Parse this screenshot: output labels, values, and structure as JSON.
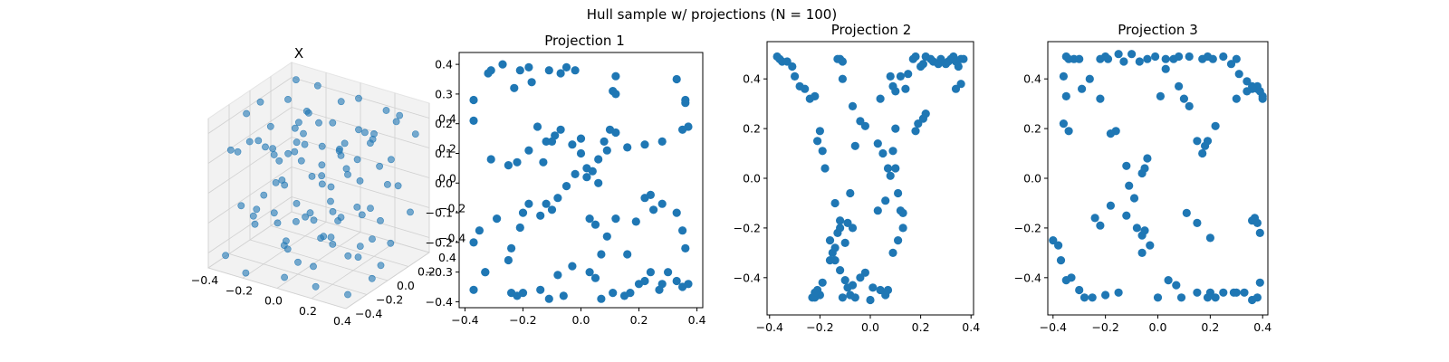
{
  "figure": {
    "suptitle": "Hull sample w/ projections (N = 100)"
  },
  "colors": {
    "point": "#1f77b4",
    "axes": "#000000",
    "pane": "#f2f2f2",
    "grid3d": "#d0d0d0"
  },
  "chart_data": [
    {
      "type": "scatter",
      "projection": "3d",
      "title": "X",
      "xlim": [
        -0.4,
        0.4
      ],
      "ylim": [
        -0.4,
        0.4
      ],
      "zlim": [
        -0.5,
        0.5
      ],
      "xticks": [
        "−0.4",
        "−0.2",
        "0.0",
        "0.2",
        "0.4"
      ],
      "yticks": [
        "−0.4",
        "−0.2",
        "0.0",
        "0.2",
        "0.4"
      ],
      "zticks": [
        "−0.4",
        "−0.2",
        "0.0",
        "0.2",
        "0.4"
      ],
      "grid": true,
      "marker_alpha": 0.6,
      "points_xyz": [
        [
          -0.35,
          0.36,
          0.42
        ],
        [
          -0.3,
          0.2,
          0.38
        ],
        [
          -0.2,
          0.32,
          0.45
        ],
        [
          -0.1,
          0.38,
          0.35
        ],
        [
          0.05,
          0.3,
          0.46
        ],
        [
          0.18,
          0.35,
          0.4
        ],
        [
          0.3,
          0.28,
          0.44
        ],
        [
          0.36,
          0.15,
          0.48
        ],
        [
          0.33,
          -0.05,
          0.42
        ],
        [
          0.25,
          -0.2,
          0.38
        ],
        [
          0.1,
          -0.3,
          0.45
        ],
        [
          -0.05,
          -0.36,
          0.4
        ],
        [
          -0.22,
          -0.3,
          0.36
        ],
        [
          -0.33,
          -0.15,
          0.44
        ],
        [
          -0.37,
          0.05,
          0.41
        ],
        [
          -0.28,
          0.27,
          0.2
        ],
        [
          -0.15,
          0.1,
          0.25
        ],
        [
          0.0,
          0.2,
          0.15
        ],
        [
          0.12,
          0.05,
          0.3
        ],
        [
          0.22,
          0.22,
          0.1
        ],
        [
          0.3,
          -0.1,
          0.18
        ],
        [
          0.15,
          -0.22,
          0.22
        ],
        [
          -0.05,
          -0.15,
          0.28
        ],
        [
          -0.2,
          -0.05,
          0.12
        ],
        [
          -0.32,
          0.1,
          0.05
        ],
        [
          -0.36,
          0.3,
          -0.05
        ],
        [
          -0.2,
          0.36,
          -0.1
        ],
        [
          0.0,
          0.37,
          0.0
        ],
        [
          0.2,
          0.33,
          -0.08
        ],
        [
          0.34,
          0.2,
          0.02
        ],
        [
          0.37,
          -0.02,
          -0.1
        ],
        [
          0.28,
          -0.25,
          0.0
        ],
        [
          0.08,
          -0.35,
          -0.05
        ],
        [
          -0.12,
          -0.33,
          0.05
        ],
        [
          -0.3,
          -0.25,
          -0.12
        ],
        [
          -0.1,
          0.1,
          -0.02
        ],
        [
          0.05,
          -0.05,
          0.05
        ],
        [
          0.15,
          0.12,
          -0.15
        ],
        [
          -0.05,
          0.0,
          -0.2
        ],
        [
          0.1,
          -0.12,
          -0.25
        ],
        [
          -0.25,
          0.2,
          -0.3
        ],
        [
          -0.1,
          0.3,
          -0.35
        ],
        [
          0.1,
          0.25,
          -0.28
        ],
        [
          0.25,
          0.1,
          -0.32
        ],
        [
          0.32,
          -0.15,
          -0.3
        ],
        [
          0.15,
          -0.3,
          -0.35
        ],
        [
          -0.05,
          -0.25,
          -0.3
        ],
        [
          -0.25,
          -0.2,
          -0.25
        ],
        [
          -0.35,
          -0.05,
          -0.3
        ],
        [
          -0.3,
          0.1,
          -0.4
        ],
        [
          -0.36,
          -0.3,
          -0.45
        ],
        [
          -0.2,
          -0.37,
          -0.48
        ],
        [
          0.0,
          -0.33,
          -0.46
        ],
        [
          0.2,
          -0.36,
          -0.44
        ],
        [
          0.35,
          -0.3,
          -0.47
        ],
        [
          0.37,
          -0.1,
          -0.45
        ],
        [
          0.3,
          0.1,
          -0.48
        ],
        [
          0.12,
          0.2,
          -0.46
        ],
        [
          -0.08,
          0.15,
          -0.45
        ],
        [
          -0.22,
          0.05,
          -0.47
        ],
        [
          -0.12,
          -0.1,
          -0.42
        ],
        [
          0.05,
          0.05,
          -0.4
        ],
        [
          0.2,
          -0.05,
          -0.38
        ],
        [
          0.08,
          -0.18,
          -0.12
        ],
        [
          -0.15,
          -0.18,
          -0.15
        ],
        [
          -0.28,
          0.0,
          0.3
        ],
        [
          -0.18,
          0.2,
          0.33
        ],
        [
          0.02,
          0.1,
          0.38
        ],
        [
          0.18,
          -0.1,
          0.34
        ],
        [
          0.05,
          -0.25,
          0.3
        ],
        [
          -0.3,
          -0.35,
          0.3
        ],
        [
          0.35,
          0.35,
          0.3
        ],
        [
          0.35,
          0.3,
          -0.2
        ],
        [
          -0.35,
          0.35,
          0.1
        ],
        [
          0.0,
          0.0,
          0.42
        ],
        [
          -0.15,
          0.28,
          0.08
        ],
        [
          0.25,
          -0.3,
          0.12
        ],
        [
          -0.25,
          -0.1,
          0.22
        ],
        [
          0.12,
          0.32,
          0.2
        ],
        [
          0.3,
          0.0,
          -0.05
        ],
        [
          -0.05,
          0.2,
          -0.12
        ],
        [
          0.2,
          0.2,
          0.32
        ],
        [
          -0.2,
          -0.25,
          0.35
        ],
        [
          0.0,
          -0.2,
          -0.42
        ],
        [
          -0.32,
          0.2,
          -0.2
        ],
        [
          0.32,
          -0.25,
          0.3
        ],
        [
          -0.1,
          0.05,
          0.44
        ],
        [
          0.1,
          0.1,
          0.1
        ],
        [
          -0.02,
          -0.32,
          0.18
        ],
        [
          0.26,
          0.26,
          -0.42
        ],
        [
          -0.26,
          0.3,
          -0.44
        ],
        [
          0.18,
          -0.18,
          -0.2
        ],
        [
          -0.18,
          -0.3,
          -0.08
        ],
        [
          0.05,
          0.3,
          0.25
        ],
        [
          -0.35,
          -0.2,
          0.2
        ],
        [
          0.36,
          0.1,
          0.25
        ],
        [
          -0.08,
          -0.08,
          0.3
        ],
        [
          0.28,
          -0.02,
          0.46
        ],
        [
          -0.28,
          0.05,
          -0.1
        ],
        [
          0.02,
          0.15,
          -0.3
        ]
      ]
    },
    {
      "type": "scatter",
      "title": "Projection 1",
      "xlim": [
        -0.42,
        0.42
      ],
      "ylim": [
        -0.42,
        0.44
      ],
      "xticks": [
        -0.4,
        -0.2,
        0.0,
        0.2,
        0.4
      ],
      "yticks": [
        -0.4,
        -0.3,
        -0.2,
        -0.1,
        0.0,
        0.1,
        0.2,
        0.3,
        0.4
      ],
      "x": [
        -0.37,
        -0.32,
        -0.31,
        -0.27,
        -0.23,
        -0.21,
        -0.18,
        -0.11,
        -0.07,
        -0.05,
        -0.02,
        0.11,
        0.12,
        0.33,
        0.36,
        0.36,
        0.37,
        0.35,
        0.28,
        0.22,
        0.16,
        0.12,
        0.09,
        0.06,
        0.02,
        0.0,
        -0.03,
        -0.07,
        -0.09,
        -0.12,
        -0.15,
        -0.18,
        -0.22,
        -0.25,
        -0.31,
        -0.37,
        -0.35,
        -0.37,
        -0.33,
        -0.24,
        -0.22,
        -0.2,
        -0.2,
        -0.14,
        -0.11,
        -0.08,
        -0.06,
        -0.03,
        0.03,
        0.05,
        0.07,
        0.11,
        0.15,
        0.17,
        0.2,
        0.22,
        0.24,
        0.27,
        0.28,
        0.3,
        0.33,
        0.35,
        0.37,
        0.36,
        0.35,
        0.33,
        0.28,
        0.24,
        0.22,
        0.19,
        0.16,
        0.12,
        0.09,
        0.07,
        0.05,
        0.03,
        0.02,
        -0.02,
        -0.05,
        -0.08,
        -0.1,
        -0.12,
        -0.14,
        -0.18,
        -0.21,
        -0.24,
        -0.25,
        -0.29,
        -0.33,
        -0.37,
        0.04,
        0.06,
        0.08,
        0.1,
        -0.1,
        -0.13,
        0.0,
        0.12,
        -0.17,
        0.25
      ],
      "y": [
        0.28,
        0.37,
        0.38,
        0.4,
        0.32,
        0.38,
        0.39,
        0.38,
        0.37,
        0.39,
        0.38,
        0.31,
        0.36,
        0.35,
        0.28,
        0.27,
        0.19,
        0.18,
        0.14,
        0.13,
        0.12,
        0.17,
        0.11,
        0.08,
        0.05,
        0.1,
        0.13,
        0.18,
        0.16,
        0.14,
        0.19,
        0.11,
        0.07,
        0.06,
        0.08,
        0.21,
        -0.16,
        -0.2,
        -0.3,
        -0.37,
        -0.38,
        -0.1,
        -0.37,
        -0.36,
        -0.39,
        -0.31,
        -0.38,
        -0.28,
        -0.3,
        -0.32,
        -0.39,
        -0.37,
        -0.38,
        -0.37,
        -0.34,
        -0.33,
        -0.3,
        -0.36,
        -0.34,
        -0.3,
        -0.33,
        -0.35,
        -0.34,
        -0.22,
        -0.16,
        -0.1,
        -0.07,
        -0.04,
        -0.05,
        -0.13,
        -0.24,
        -0.12,
        -0.18,
        -0.24,
        -0.14,
        -0.12,
        0.02,
        0.03,
        -0.01,
        -0.05,
        -0.09,
        -0.07,
        -0.11,
        -0.07,
        -0.15,
        -0.22,
        -0.26,
        -0.12,
        -0.3,
        -0.36,
        0.04,
        0.0,
        0.14,
        0.18,
        0.14,
        0.07,
        0.15,
        0.3,
        0.34,
        -0.09
      ]
    },
    {
      "type": "scatter",
      "title": "Projection 2",
      "xlim": [
        -0.41,
        0.41
      ],
      "ylim": [
        -0.55,
        0.55
      ],
      "xticks": [
        -0.4,
        -0.2,
        0.0,
        0.2,
        0.4
      ],
      "yticks": [
        -0.4,
        -0.2,
        0.0,
        0.2,
        0.4
      ],
      "x": [
        -0.37,
        -0.36,
        -0.35,
        -0.33,
        -0.31,
        -0.3,
        -0.28,
        -0.26,
        -0.24,
        -0.22,
        -0.13,
        -0.12,
        -0.11,
        -0.11,
        -0.07,
        0.08,
        0.09,
        0.1,
        0.12,
        0.14,
        0.15,
        0.17,
        0.18,
        0.2,
        0.21,
        0.22,
        0.24,
        0.25,
        0.27,
        0.28,
        0.3,
        0.31,
        0.32,
        0.33,
        0.34,
        0.35,
        0.36,
        0.37,
        0.36,
        0.34,
        -0.2,
        -0.21,
        -0.19,
        -0.18,
        -0.14,
        -0.12,
        -0.09,
        -0.07,
        0.03,
        0.06,
        0.08,
        0.09,
        0.1,
        -0.13,
        -0.16,
        -0.15,
        -0.14,
        -0.12,
        -0.1,
        -0.09,
        -0.08,
        -0.06,
        -0.11,
        -0.07,
        -0.04,
        0.01,
        0.04,
        0.06,
        0.07,
        0.09,
        0.11,
        0.13,
        0.13,
        0.12,
        0.11,
        0.07,
        0.05,
        0.03,
        -0.02,
        -0.04,
        -0.06,
        -0.08,
        -0.1,
        -0.12,
        -0.14,
        -0.16,
        -0.19,
        -0.2,
        -0.22,
        -0.23,
        -0.21,
        -0.22,
        0.0,
        -0.02,
        0.1,
        0.04,
        0.21,
        0.18,
        0.19,
        0.22
      ],
      "y": [
        0.49,
        0.48,
        0.47,
        0.47,
        0.45,
        0.41,
        0.37,
        0.36,
        0.32,
        0.33,
        0.48,
        0.48,
        0.47,
        0.4,
        0.29,
        0.41,
        0.37,
        0.35,
        0.41,
        0.36,
        0.42,
        0.48,
        0.49,
        0.45,
        0.46,
        0.49,
        0.48,
        0.47,
        0.46,
        0.48,
        0.46,
        0.47,
        0.48,
        0.49,
        0.47,
        0.45,
        0.48,
        0.48,
        0.38,
        0.36,
        0.19,
        0.15,
        0.11,
        0.04,
        -0.1,
        -0.17,
        -0.18,
        -0.2,
        -0.13,
        -0.09,
        0.01,
        0.11,
        0.2,
        -0.22,
        -0.25,
        -0.3,
        -0.33,
        -0.37,
        -0.41,
        -0.44,
        -0.47,
        -0.48,
        -0.48,
        -0.43,
        -0.4,
        -0.44,
        -0.45,
        -0.47,
        -0.45,
        -0.3,
        -0.25,
        -0.2,
        -0.14,
        -0.13,
        -0.06,
        0.04,
        0.1,
        0.14,
        0.21,
        0.23,
        0.13,
        -0.06,
        -0.26,
        -0.2,
        -0.28,
        -0.33,
        -0.42,
        -0.47,
        -0.48,
        -0.48,
        -0.45,
        -0.46,
        -0.49,
        -0.38,
        0.04,
        0.32,
        0.24,
        0.19,
        0.22,
        0.26
      ],
      "y_dummy_note": ""
    },
    {
      "type": "scatter",
      "title": "Projection 3",
      "xlim": [
        -0.42,
        0.42
      ],
      "ylim": [
        -0.55,
        0.55
      ],
      "xticks": [
        -0.4,
        -0.2,
        0.0,
        0.2,
        0.4
      ],
      "yticks": [
        -0.4,
        -0.2,
        0.0,
        0.2,
        0.4
      ],
      "x": [
        -0.36,
        -0.35,
        -0.34,
        -0.32,
        -0.3,
        -0.26,
        -0.22,
        -0.2,
        -0.19,
        -0.15,
        -0.13,
        -0.1,
        -0.07,
        -0.04,
        -0.01,
        0.03,
        0.06,
        0.08,
        0.12,
        0.17,
        0.19,
        0.21,
        0.25,
        0.28,
        0.3,
        0.31,
        0.34,
        0.36,
        0.38,
        0.39,
        0.4,
        0.4,
        0.38,
        0.36,
        0.34,
        0.3,
        0.22,
        0.19,
        0.18,
        0.17,
        0.15,
        0.12,
        0.1,
        0.08,
        0.03,
        0.01,
        -0.04,
        -0.06,
        -0.12,
        -0.16,
        -0.18,
        -0.22,
        -0.29,
        -0.35,
        -0.36,
        -0.34,
        -0.4,
        -0.38,
        -0.37,
        -0.33,
        -0.3,
        -0.28,
        -0.25,
        -0.2,
        -0.15,
        -0.12,
        -0.08,
        -0.06,
        -0.03,
        0.0,
        0.04,
        0.07,
        0.09,
        0.15,
        0.19,
        0.2,
        0.25,
        0.3,
        0.36,
        0.38,
        0.39,
        0.37,
        0.36,
        0.39,
        0.38,
        0.33,
        0.29,
        0.22,
        0.2,
        0.15,
        0.11,
        -0.05,
        -0.05,
        -0.09,
        -0.11,
        -0.06,
        -0.22,
        -0.18,
        -0.24,
        -0.35
      ],
      "y": [
        0.41,
        0.49,
        0.48,
        0.48,
        0.48,
        0.4,
        0.48,
        0.49,
        0.48,
        0.5,
        0.47,
        0.5,
        0.47,
        0.48,
        0.49,
        0.48,
        0.48,
        0.49,
        0.49,
        0.48,
        0.49,
        0.48,
        0.49,
        0.46,
        0.48,
        0.42,
        0.39,
        0.37,
        0.36,
        0.35,
        0.33,
        0.32,
        0.37,
        0.36,
        0.35,
        0.32,
        0.21,
        0.15,
        0.13,
        0.1,
        0.15,
        0.29,
        0.32,
        0.37,
        0.44,
        0.33,
        0.08,
        0.02,
        0.05,
        0.19,
        0.18,
        0.32,
        0.36,
        0.33,
        0.22,
        0.19,
        -0.25,
        -0.27,
        -0.33,
        -0.4,
        -0.45,
        -0.48,
        -0.48,
        -0.47,
        -0.46,
        -0.15,
        -0.2,
        -0.23,
        -0.27,
        -0.48,
        -0.41,
        -0.43,
        -0.48,
        -0.46,
        -0.48,
        -0.46,
        -0.46,
        -0.46,
        -0.49,
        -0.48,
        -0.42,
        -0.16,
        -0.17,
        -0.22,
        -0.18,
        -0.46,
        -0.46,
        -0.48,
        -0.24,
        -0.18,
        -0.14,
        -0.21,
        0.04,
        -0.08,
        -0.03,
        -0.3,
        -0.19,
        -0.11,
        -0.16,
        -0.41
      ],
      "y_dummy_note": ""
    }
  ]
}
